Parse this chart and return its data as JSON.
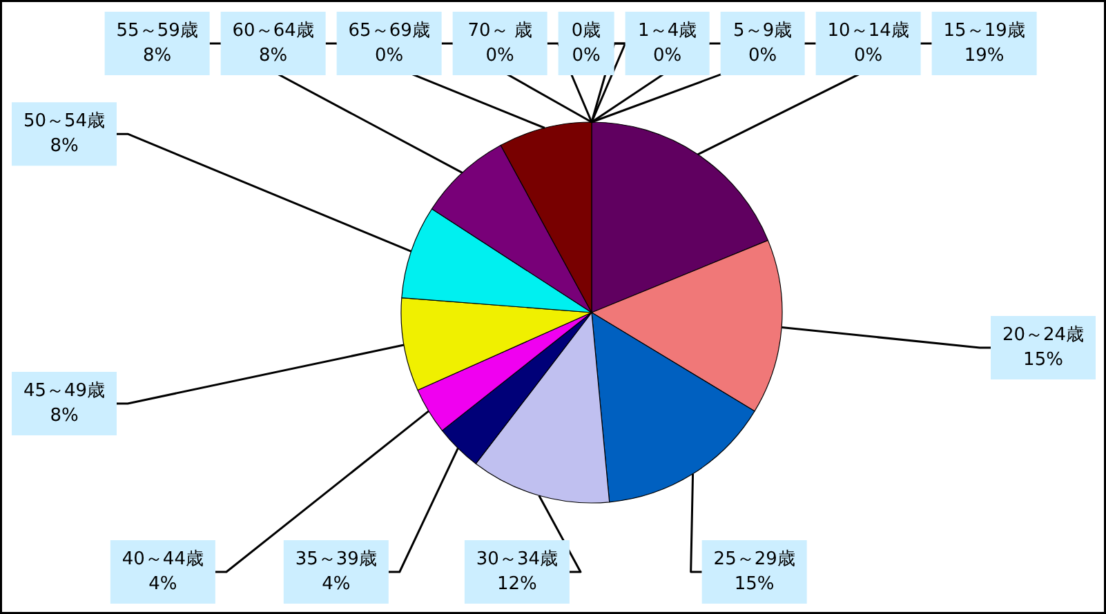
{
  "chart_data": {
    "type": "pie",
    "categories": [
      "0歳",
      "1～4歳",
      "5～9歳",
      "10～14歳",
      "15～19歳",
      "20～24歳",
      "25～29歳",
      "30～34歳",
      "35～39歳",
      "40～44歳",
      "45～49歳",
      "50～54歳",
      "55～59歳",
      "60～64歳",
      "65～69歳",
      "70～ 歳"
    ],
    "values": [
      0,
      0,
      0,
      0,
      19,
      15,
      15,
      12,
      4,
      4,
      8,
      8,
      8,
      8,
      0,
      0
    ],
    "colors": [
      null,
      null,
      null,
      null,
      "#600060",
      "#f07878",
      "#0060c0",
      "#c0c0f0",
      "#000078",
      "#f000f0",
      "#f0f000",
      "#00f0f0",
      "#780078",
      "#780000",
      null,
      null
    ],
    "value_labels": [
      "0%",
      "0%",
      "0%",
      "0%",
      "19%",
      "15%",
      "15%",
      "12%",
      "4%",
      "4%",
      "8%",
      "8%",
      "8%",
      "8%",
      "0%",
      "0%"
    ]
  }
}
